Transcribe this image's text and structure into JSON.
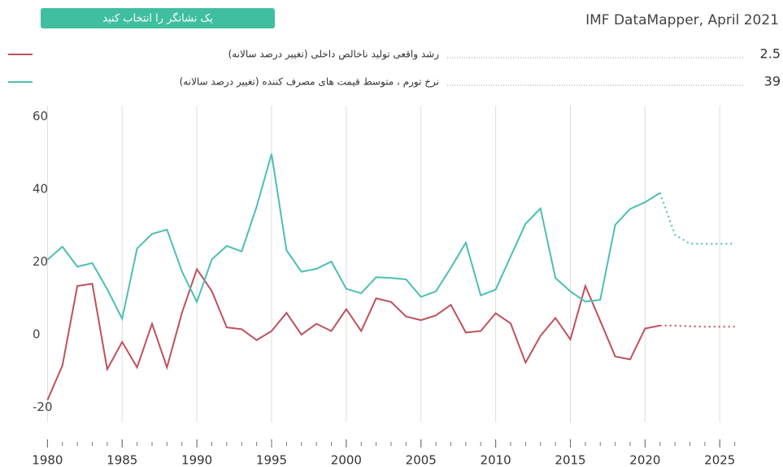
{
  "chart_data": {
    "type": "line",
    "source": "IMF DataMapper, April 2021",
    "button": "یک نشانگر را انتخاب کنید",
    "x": [
      1980,
      1981,
      1982,
      1983,
      1984,
      1985,
      1986,
      1987,
      1988,
      1989,
      1990,
      1991,
      1992,
      1993,
      1994,
      1995,
      1996,
      1997,
      1998,
      1999,
      2000,
      2001,
      2002,
      2003,
      2004,
      2005,
      2006,
      2007,
      2008,
      2009,
      2010,
      2011,
      2012,
      2013,
      2014,
      2015,
      2016,
      2017,
      2018,
      2019,
      2020,
      2021,
      2022,
      2023,
      2024,
      2025,
      2026
    ],
    "projection_from": 2021,
    "series": [
      {
        "name": "رشد واقعی تولید ناخالص داخلی (تغییر درصد سالانه)",
        "color": "#c0505d",
        "legend_value": 2.5,
        "values": [
          -18,
          -8.5,
          13.4,
          14,
          -9.5,
          -2,
          -9,
          3,
          -9,
          6,
          18,
          12,
          2,
          1.5,
          -1.5,
          1,
          6,
          0,
          3,
          1,
          7,
          1,
          10,
          9,
          5,
          4,
          5.3,
          8.2,
          0.6,
          1,
          5.9,
          3.1,
          -7.7,
          -0.3,
          4.6,
          -1.3,
          13.4,
          3.8,
          -6,
          -6.8,
          1.7,
          2.5,
          2.5,
          2.3,
          2.2,
          2.2,
          2.2
        ]
      },
      {
        "name": "نرخ تورم ، متوسط قیمت های مصرف کننده (تغییر درصد سالانه)",
        "color": "#4bbfb5",
        "legend_value": 39,
        "values": [
          20.6,
          24.2,
          18.7,
          19.7,
          12.5,
          4.4,
          23.7,
          27.7,
          28.9,
          17.4,
          9,
          20.7,
          24.4,
          22.9,
          35.2,
          49.7,
          23.2,
          17.3,
          18.1,
          20.1,
          12.6,
          11.4,
          15.8,
          15.6,
          15.2,
          10.4,
          11.9,
          18.4,
          25.3,
          10.8,
          12.4,
          21.5,
          30.5,
          34.7,
          15.6,
          11.9,
          9.1,
          9.6,
          30.2,
          34.6,
          36.4,
          39,
          27.5,
          25,
          25,
          25,
          25
        ]
      }
    ],
    "xlim": [
      1979,
      2027
    ],
    "xticks": [
      1980,
      1985,
      1990,
      1995,
      2000,
      2005,
      2010,
      2015,
      2020,
      2025
    ],
    "ylim": [
      -25,
      63
    ],
    "yticks": [
      -20,
      0,
      20,
      40,
      60
    ],
    "grid": true
  }
}
